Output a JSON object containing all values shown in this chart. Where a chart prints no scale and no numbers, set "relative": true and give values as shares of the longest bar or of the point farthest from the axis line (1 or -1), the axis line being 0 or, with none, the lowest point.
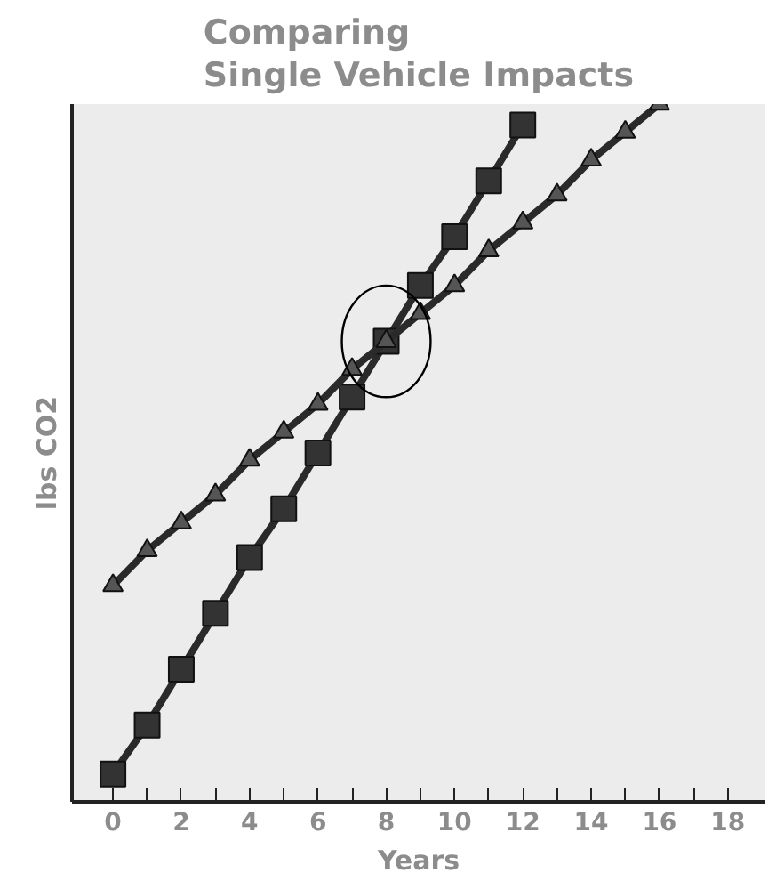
{
  "chart_data": {
    "type": "line",
    "title": "Comparing\nSingle Vehicle Impacts",
    "xlabel": "Years",
    "ylabel": "lbs CO2",
    "relative": true,
    "x": [
      0,
      1,
      2,
      3,
      4,
      5,
      6,
      7,
      8,
      9,
      10,
      11,
      12,
      13,
      14,
      15,
      16
    ],
    "xlim": [
      -1.2,
      19.1
    ],
    "xticks": [
      0,
      {
        "value": 1,
        "label": null
      },
      2,
      {
        "value": 3,
        "label": null
      },
      4,
      {
        "value": 5,
        "label": null
      },
      6,
      {
        "value": 7,
        "label": null
      },
      8,
      {
        "value": 9,
        "label": null
      },
      10,
      {
        "value": 11,
        "label": null
      },
      12,
      {
        "value": 13,
        "label": null
      },
      14,
      {
        "value": 15,
        "label": null
      },
      16,
      {
        "value": 17,
        "label": null
      },
      18
    ],
    "grid": false,
    "line_style": "solid",
    "series": [
      {
        "color": "#333333",
        "marker": "square",
        "values": [
          0.04,
          0.11,
          0.19,
          0.27,
          0.35,
          0.42,
          0.5,
          0.58,
          0.66,
          0.74,
          0.81,
          0.89,
          0.97,
          null,
          null,
          null,
          null
        ]
      },
      {
        "color": "#555555",
        "marker": "triangle",
        "values": [
          0.31,
          0.36,
          0.4,
          0.44,
          0.49,
          0.53,
          0.57,
          0.62,
          0.66,
          0.7,
          0.74,
          0.79,
          0.83,
          0.87,
          0.92,
          0.96,
          1.0
        ]
      }
    ]
  }
}
